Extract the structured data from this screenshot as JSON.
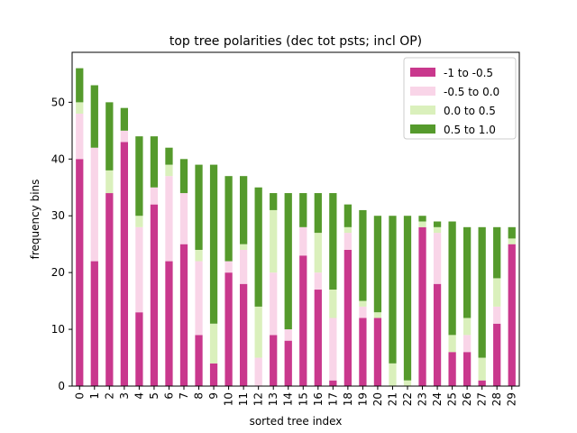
{
  "chart_data": {
    "type": "bar",
    "stacked": true,
    "title": "top tree polarities (dec tot psts; incl OP)",
    "xlabel": "sorted tree index",
    "ylabel": "frequency bins",
    "ylim": [
      0,
      58.8
    ],
    "yticks": [
      0,
      10,
      20,
      30,
      40,
      50
    ],
    "grid": false,
    "legend_position": "top-right",
    "categories": [
      "0",
      "1",
      "2",
      "3",
      "4",
      "5",
      "6",
      "7",
      "8",
      "9",
      "10",
      "11",
      "12",
      "13",
      "14",
      "15",
      "16",
      "17",
      "18",
      "19",
      "20",
      "21",
      "22",
      "23",
      "24",
      "25",
      "26",
      "27",
      "28",
      "29"
    ],
    "series": [
      {
        "name": "-1 to -0.5",
        "color": "#c9388d",
        "values": [
          40,
          22,
          34,
          43,
          13,
          32,
          22,
          25,
          9,
          4,
          20,
          18,
          0,
          9,
          8,
          23,
          17,
          1,
          24,
          12,
          12,
          0,
          0,
          28,
          18,
          6,
          6,
          1,
          11,
          25
        ]
      },
      {
        "name": "-0.5 to 0.0",
        "color": "#f9d5e8",
        "values": [
          8,
          20,
          0,
          2,
          15,
          3,
          15,
          9,
          13,
          0,
          2,
          6,
          5,
          11,
          2,
          5,
          3,
          11,
          3,
          2,
          0,
          0,
          0,
          0,
          9,
          0,
          3,
          0,
          3,
          0
        ]
      },
      {
        "name": "0.0 to 0.5",
        "color": "#daf0bc",
        "values": [
          2,
          0,
          4,
          0,
          2,
          0,
          2,
          0,
          2,
          7,
          0,
          1,
          9,
          11,
          0,
          0,
          7,
          5,
          1,
          1,
          1,
          4,
          1,
          1,
          1,
          3,
          3,
          4,
          5,
          1
        ]
      },
      {
        "name": "0.5 to 1.0",
        "color": "#559a2c",
        "values": [
          6,
          11,
          12,
          4,
          14,
          9,
          3,
          6,
          15,
          28,
          15,
          12,
          21,
          3,
          24,
          6,
          7,
          17,
          4,
          16,
          17,
          26,
          29,
          1,
          1,
          20,
          16,
          23,
          9,
          2
        ]
      }
    ]
  }
}
